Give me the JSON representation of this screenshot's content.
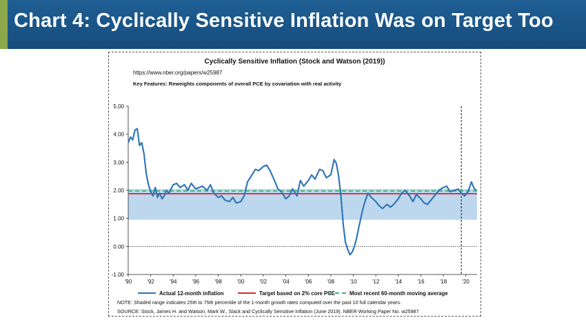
{
  "header": {
    "title": "Chart 4: Cyclically Sensitive Inflation Was on Target Too",
    "accent_color": "#8da84a",
    "background_color": "#1a5687"
  },
  "chart_data": {
    "type": "line",
    "title": "Cyclically Sensitive Inflation (Stock and Watson (2019))",
    "subtitle": "https://www.nber.org/papers/w25987",
    "annotation": "Key Features: Reweights components of overall PCE by covariation with real activity",
    "xlabel": "",
    "ylabel": "",
    "xlim": [
      1990,
      2021
    ],
    "ylim": [
      -1.0,
      5.0
    ],
    "y_ticks": [
      "5.00",
      "4.00",
      "3.00",
      "2.00",
      "1.00",
      "0.00",
      "-1.00"
    ],
    "y_tick_values": [
      5,
      4,
      3,
      2,
      1,
      0,
      -1
    ],
    "x_ticks": [
      "'90",
      "'92",
      "'94",
      "'96",
      "'98",
      "'00",
      "'02",
      "'04",
      "'06",
      "'08",
      "'10",
      "'12",
      "'14",
      "'16",
      "'18",
      "'20"
    ],
    "x_tick_values": [
      1990,
      1992,
      1994,
      1996,
      1998,
      2000,
      2002,
      2004,
      2006,
      2008,
      2010,
      2012,
      2014,
      2016,
      2018,
      2020
    ],
    "grid": false,
    "legend_position": "bottom",
    "shaded_range": {
      "x_start": 1990,
      "x_end": 2021,
      "y_low": 0.95,
      "y_high": 2.05,
      "color": "#bdd7ee"
    },
    "vertical_marker": {
      "x": 2019.6,
      "style": "dashed"
    },
    "zero_line": {
      "y": 0,
      "style": "dotted"
    },
    "series": [
      {
        "name": "Actual 12-month inflation",
        "color": "#2e75b6",
        "style": "solid",
        "x": [
          1990.0,
          1990.2,
          1990.4,
          1990.6,
          1990.8,
          1991.0,
          1991.2,
          1991.4,
          1991.6,
          1991.8,
          1992.0,
          1992.2,
          1992.4,
          1992.6,
          1992.8,
          1993.0,
          1993.2,
          1993.4,
          1993.6,
          1993.8,
          1994.0,
          1994.3,
          1994.6,
          1995.0,
          1995.3,
          1995.6,
          1996.0,
          1996.3,
          1996.6,
          1997.0,
          1997.3,
          1997.6,
          1998.0,
          1998.3,
          1998.6,
          1999.0,
          1999.3,
          1999.6,
          2000.0,
          2000.3,
          2000.6,
          2001.0,
          2001.3,
          2001.6,
          2002.0,
          2002.3,
          2002.6,
          2003.0,
          2003.3,
          2003.6,
          2004.0,
          2004.3,
          2004.6,
          2005.0,
          2005.3,
          2005.6,
          2006.0,
          2006.3,
          2006.6,
          2007.0,
          2007.3,
          2007.6,
          2008.0,
          2008.3,
          2008.5,
          2008.7,
          2008.9,
          2009.1,
          2009.3,
          2009.5,
          2009.7,
          2009.9,
          2010.1,
          2010.3,
          2010.5,
          2010.8,
          2011.0,
          2011.3,
          2011.6,
          2012.0,
          2012.3,
          2012.6,
          2013.0,
          2013.3,
          2013.6,
          2014.0,
          2014.3,
          2014.6,
          2015.0,
          2015.3,
          2015.6,
          2016.0,
          2016.3,
          2016.6,
          2017.0,
          2017.3,
          2017.6,
          2018.0,
          2018.3,
          2018.6,
          2019.0,
          2019.3,
          2019.6,
          2019.9,
          2020.2,
          2020.5,
          2020.7,
          2020.9
        ],
        "values": [
          3.7,
          3.9,
          3.8,
          4.15,
          4.2,
          3.6,
          3.7,
          3.3,
          2.6,
          2.2,
          1.95,
          1.8,
          2.1,
          1.75,
          1.9,
          1.7,
          1.8,
          2.0,
          1.9,
          2.05,
          2.2,
          2.25,
          2.1,
          2.2,
          2.0,
          2.25,
          2.05,
          2.1,
          2.15,
          2.0,
          2.2,
          1.9,
          1.75,
          1.8,
          1.65,
          1.6,
          1.75,
          1.55,
          1.6,
          1.8,
          2.3,
          2.55,
          2.75,
          2.7,
          2.85,
          2.9,
          2.7,
          2.35,
          2.05,
          1.95,
          1.7,
          1.8,
          2.05,
          1.8,
          2.35,
          2.15,
          2.35,
          2.55,
          2.4,
          2.75,
          2.7,
          2.45,
          2.55,
          3.1,
          2.95,
          2.5,
          1.8,
          0.8,
          0.15,
          -0.1,
          -0.3,
          -0.2,
          0.0,
          0.3,
          0.7,
          1.25,
          1.55,
          1.9,
          1.75,
          1.6,
          1.45,
          1.35,
          1.5,
          1.4,
          1.5,
          1.7,
          1.9,
          2.0,
          1.8,
          1.6,
          1.85,
          1.7,
          1.55,
          1.5,
          1.7,
          1.85,
          2.0,
          2.1,
          2.15,
          1.95,
          2.0,
          2.05,
          1.9,
          1.8,
          1.95,
          2.3,
          2.1,
          2.0
        ]
      },
      {
        "name": "Target based on 2% core PCE",
        "color": "#d9262a",
        "style": "solid",
        "x": [
          1990,
          2021
        ],
        "values": [
          1.88,
          1.88
        ]
      },
      {
        "name": "Most recent 60-month moving average",
        "color": "#3bb273",
        "style": "dashed",
        "x": [
          1990,
          2021
        ],
        "values": [
          1.98,
          1.98
        ]
      }
    ]
  },
  "notes": {
    "note": "NOTE: Shaded range indicates 25th to 75th percentile of the 1-month growth rates computed over the past 10 full calendar years.",
    "source": "SOURCE: Stock, James H. and Watson, Mark W., Slack and Cyclically Sensitive Inflation (June 2019). NBER Working Paper No. w25987"
  }
}
